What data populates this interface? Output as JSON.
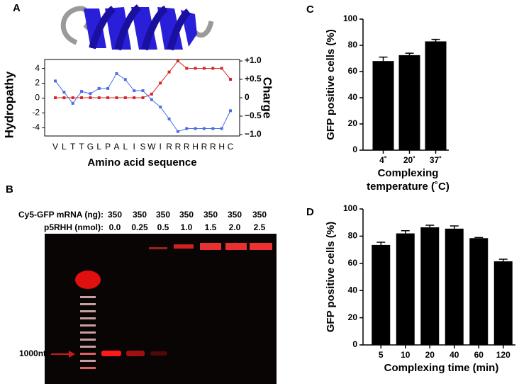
{
  "chart_data": [
    {
      "type": "line",
      "panel": "A",
      "categories": [
        "V",
        "L",
        "T",
        "T",
        "G",
        "L",
        "P",
        "A",
        "L",
        "I",
        "S",
        "W",
        "I",
        "R",
        "R",
        "R",
        "H",
        "R",
        "R",
        "H",
        "C"
      ],
      "series": [
        {
          "name": "Hydropathy",
          "color": "#4a6fe3",
          "values": [
            2.3,
            0.8,
            -0.7,
            0.9,
            0.6,
            1.3,
            1.3,
            3.3,
            2.5,
            1.0,
            1.0,
            -0.2,
            -1.2,
            -2.8,
            -4.5,
            -4.1,
            -4.1,
            -4.1,
            -4.1,
            -4.1,
            -1.7
          ]
        },
        {
          "name": "Charge",
          "color": "#d62828",
          "axis": "y2",
          "values": [
            0,
            0,
            0,
            0,
            0,
            0,
            0,
            0,
            0,
            0,
            0,
            0.1,
            0.4,
            0.7,
            1.0,
            0.8,
            0.8,
            0.8,
            0.8,
            0.8,
            0.5
          ]
        }
      ],
      "xlabel": "Amino acid sequence",
      "ylabel": "Hydropathy",
      "y2label": "Charge",
      "ylim": [
        -5.1,
        5.2
      ],
      "yticks": [
        -4,
        -2,
        0,
        2,
        4
      ],
      "y2lim": [
        -1.04,
        1.04
      ],
      "y2ticks": [
        {
          "value": -1.0,
          "label": "−1.0"
        },
        {
          "value": -0.5,
          "label": "−0.5"
        },
        0,
        {
          "value": 0.5,
          "label": "+0.5"
        },
        {
          "value": 1.0,
          "label": "+1.0"
        }
      ]
    },
    {
      "type": "bar",
      "panel": "C",
      "color": "#000000",
      "categories": [
        "4˚",
        "20˚",
        "37˚"
      ],
      "values": [
        68,
        72.5,
        83
      ],
      "errors": [
        3,
        1.5,
        1.5
      ],
      "ylabel": "GFP positive cells (%)",
      "xlabel": [
        "Complexing",
        "temperature (˚C)"
      ],
      "ylim": [
        0,
        100
      ],
      "yticks": [
        0,
        20,
        40,
        60,
        80,
        100
      ]
    },
    {
      "type": "bar",
      "panel": "D",
      "color": "#000000",
      "categories": [
        "5",
        "10",
        "20",
        "40",
        "60",
        "120"
      ],
      "values": [
        73.5,
        82,
        86.5,
        85.5,
        78.5,
        61.5
      ],
      "errors": [
        2,
        2,
        1.5,
        2,
        0.5,
        1.5
      ],
      "ylabel": "GFP positive cells (%)",
      "xlabel": [
        "Complexing time (min)"
      ],
      "ylim": [
        0,
        100
      ],
      "yticks": [
        0,
        20,
        40,
        60,
        80,
        100
      ]
    }
  ],
  "gel": {
    "panel": "B",
    "mrna_label": "Cy5-GFP mRNA (ng):",
    "mrna_values": [
      "350",
      "350",
      "350",
      "350",
      "350",
      "350",
      "350"
    ],
    "p5rhh_label": "p5RHH (nmol):",
    "p5rhh_values": [
      "0.0",
      "0.25",
      "0.5",
      "1.0",
      "1.5",
      "2.0",
      "2.5"
    ],
    "marker": "1000nt"
  }
}
